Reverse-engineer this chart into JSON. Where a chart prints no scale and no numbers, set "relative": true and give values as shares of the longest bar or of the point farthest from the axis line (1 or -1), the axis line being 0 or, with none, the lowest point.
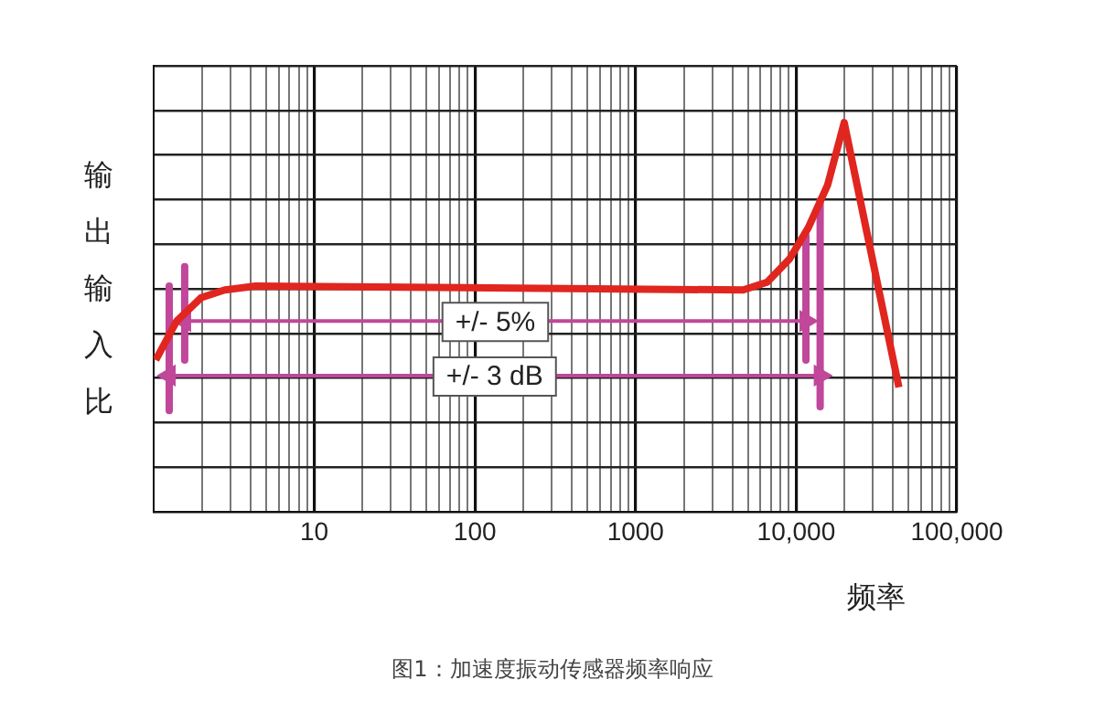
{
  "chart_data": {
    "type": "line",
    "relative": true,
    "ylabel": "输出输入比",
    "xlabel": "频率",
    "annotations": [
      "图1：加速度振动传感器频率响应"
    ],
    "log": "x",
    "grid": true,
    "legend": false,
    "marker": "none",
    "xlim": [
      1,
      100000
    ],
    "xticks": [
      {
        "value": 1,
        "label": null
      },
      {
        "value": 2,
        "label": null
      },
      {
        "value": 3,
        "label": null
      },
      {
        "value": 4,
        "label": null
      },
      {
        "value": 5,
        "label": null
      },
      {
        "value": 6,
        "label": null
      },
      {
        "value": 7,
        "label": null
      },
      {
        "value": 8,
        "label": null
      },
      {
        "value": 9,
        "label": null
      },
      10,
      {
        "value": 20,
        "label": null
      },
      {
        "value": 30,
        "label": null
      },
      {
        "value": 40,
        "label": null
      },
      {
        "value": 50,
        "label": null
      },
      {
        "value": 60,
        "label": null
      },
      {
        "value": 70,
        "label": null
      },
      {
        "value": 80,
        "label": null
      },
      {
        "value": 90,
        "label": null
      },
      100,
      {
        "value": 200,
        "label": null
      },
      {
        "value": 300,
        "label": null
      },
      {
        "value": 400,
        "label": null
      },
      {
        "value": 500,
        "label": null
      },
      {
        "value": 600,
        "label": null
      },
      {
        "value": 700,
        "label": null
      },
      {
        "value": 800,
        "label": null
      },
      {
        "value": 900,
        "label": null
      },
      1000,
      {
        "value": 2000,
        "label": null
      },
      {
        "value": 3000,
        "label": null
      },
      {
        "value": 4000,
        "label": null
      },
      {
        "value": 5000,
        "label": null
      },
      {
        "value": 6000,
        "label": null
      },
      {
        "value": 7000,
        "label": null
      },
      {
        "value": 8000,
        "label": null
      },
      {
        "value": 9000,
        "label": null
      },
      {
        "value": 10000,
        "label": "10,000"
      },
      {
        "value": 20000,
        "label": null
      },
      {
        "value": 30000,
        "label": null
      },
      {
        "value": 40000,
        "label": null
      },
      {
        "value": 50000,
        "label": null
      },
      {
        "value": 60000,
        "label": null
      },
      {
        "value": 70000,
        "label": null
      },
      {
        "value": 80000,
        "label": null
      },
      {
        "value": 90000,
        "label": null
      },
      {
        "value": 100000,
        "label": "100,000"
      }
    ],
    "series": [
      {
        "color": "#e0261f",
        "x": [
          1.03,
          1.39,
          1.97,
          2.77,
          4.3,
          4680,
          6600,
          9100,
          11900,
          15700,
          19900,
          43600
        ],
        "values": [
          0.39,
          0.49,
          0.55,
          0.57,
          0.58,
          0.57,
          0.59,
          0.65,
          0.73,
          0.84,
          1,
          0.32
        ]
      },
      {
        "name": "+/- 5%",
        "color": "#c0479a",
        "marker": "triangle",
        "x": [
          1.56,
          11500
        ],
        "values": [
          0.49,
          0.49
        ]
      },
      {
        "name": "+/- 3 dB",
        "color": "#c0479a",
        "marker": "triangle",
        "x": [
          1.25,
          14100
        ],
        "values": [
          0.35,
          0.35
        ]
      },
      {
        "color": "#c0479a",
        "x": [
          1.25,
          1.25
        ],
        "values": [
          0.58,
          0.26
        ]
      },
      {
        "color": "#c0479a",
        "x": [
          1.56,
          1.56
        ],
        "values": [
          0.63,
          0.39
        ]
      },
      {
        "color": "#c0479a",
        "x": [
          11500,
          11500
        ],
        "values": [
          0.71,
          0.39
        ]
      },
      {
        "color": "#c0479a",
        "x": [
          14100,
          14100
        ],
        "values": [
          0.8,
          0.27
        ]
      }
    ]
  }
}
